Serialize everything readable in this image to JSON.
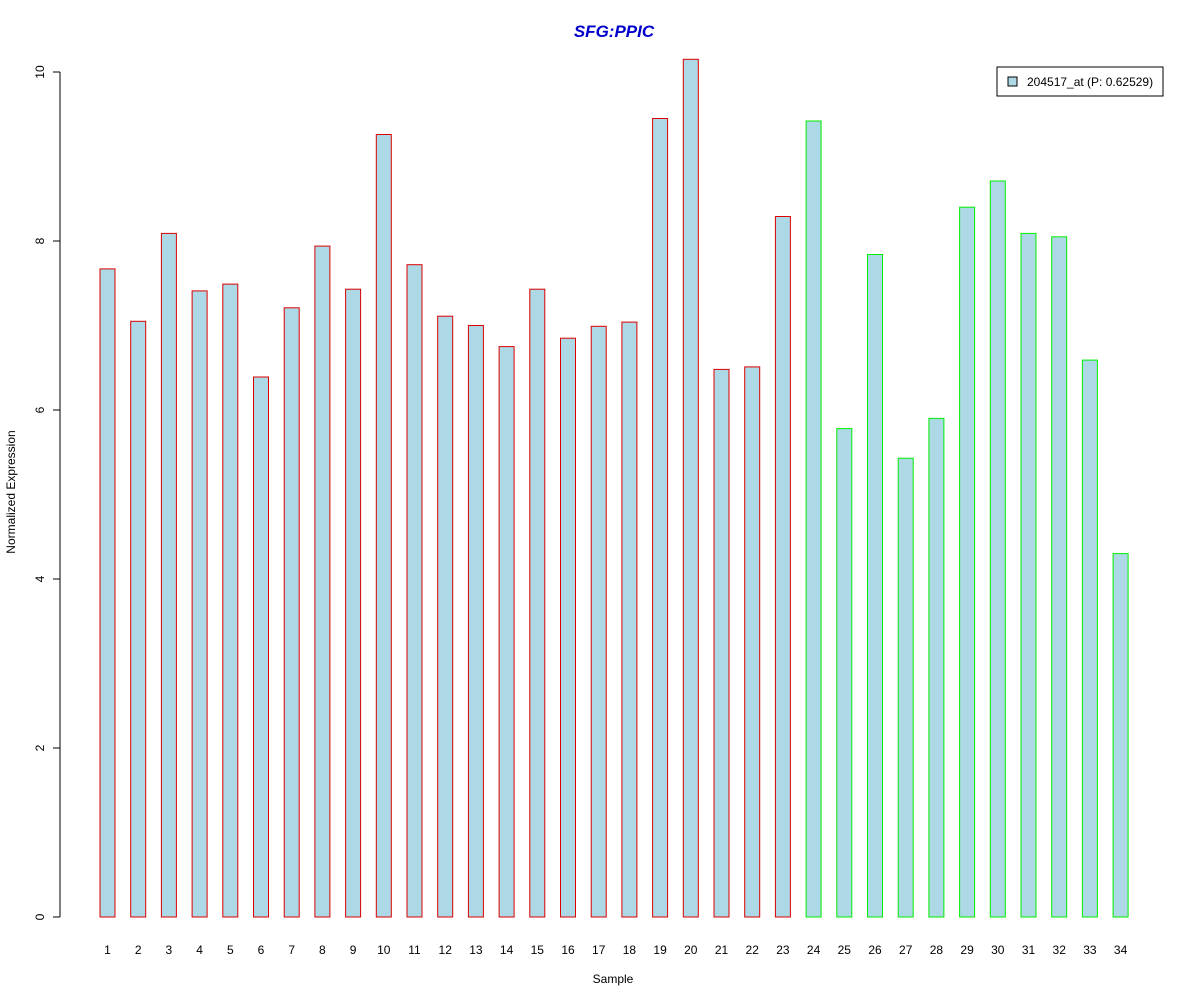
{
  "chart_data": {
    "type": "bar",
    "title": "SFG:PPIC",
    "xlabel": "Sample",
    "ylabel": "Normalized Expression",
    "ylim": [
      0,
      10
    ],
    "yticks": [
      0,
      2,
      4,
      6,
      8,
      10
    ],
    "grid": false,
    "legend_position": "top-right",
    "legend": {
      "label": "204517_at (P: 0.62529)"
    },
    "categories": [
      "1",
      "2",
      "3",
      "4",
      "5",
      "6",
      "7",
      "8",
      "9",
      "10",
      "11",
      "12",
      "13",
      "14",
      "15",
      "16",
      "17",
      "18",
      "19",
      "20",
      "21",
      "22",
      "23",
      "24",
      "25",
      "26",
      "27",
      "28",
      "29",
      "30",
      "31",
      "32",
      "33",
      "34"
    ],
    "values": [
      7.67,
      7.05,
      8.09,
      7.41,
      7.49,
      6.39,
      7.21,
      7.94,
      7.43,
      9.26,
      7.72,
      7.11,
      7.0,
      6.75,
      7.43,
      6.85,
      6.99,
      7.04,
      9.45,
      10.15,
      6.48,
      6.51,
      8.29,
      9.42,
      5.78,
      7.84,
      5.43,
      5.9,
      8.4,
      8.71,
      8.09,
      8.05,
      6.59,
      4.3
    ],
    "groups": [
      "red",
      "red",
      "red",
      "red",
      "red",
      "red",
      "red",
      "red",
      "red",
      "red",
      "red",
      "red",
      "red",
      "red",
      "red",
      "red",
      "red",
      "red",
      "red",
      "red",
      "red",
      "red",
      "red",
      "green",
      "green",
      "green",
      "green",
      "green",
      "green",
      "green",
      "green",
      "green",
      "green",
      "green"
    ]
  },
  "colors": {
    "title": "#0000cc",
    "bar_fill": "#add8e6",
    "red": "#dd0000",
    "green": "#00ee00",
    "axis": "#000000"
  }
}
